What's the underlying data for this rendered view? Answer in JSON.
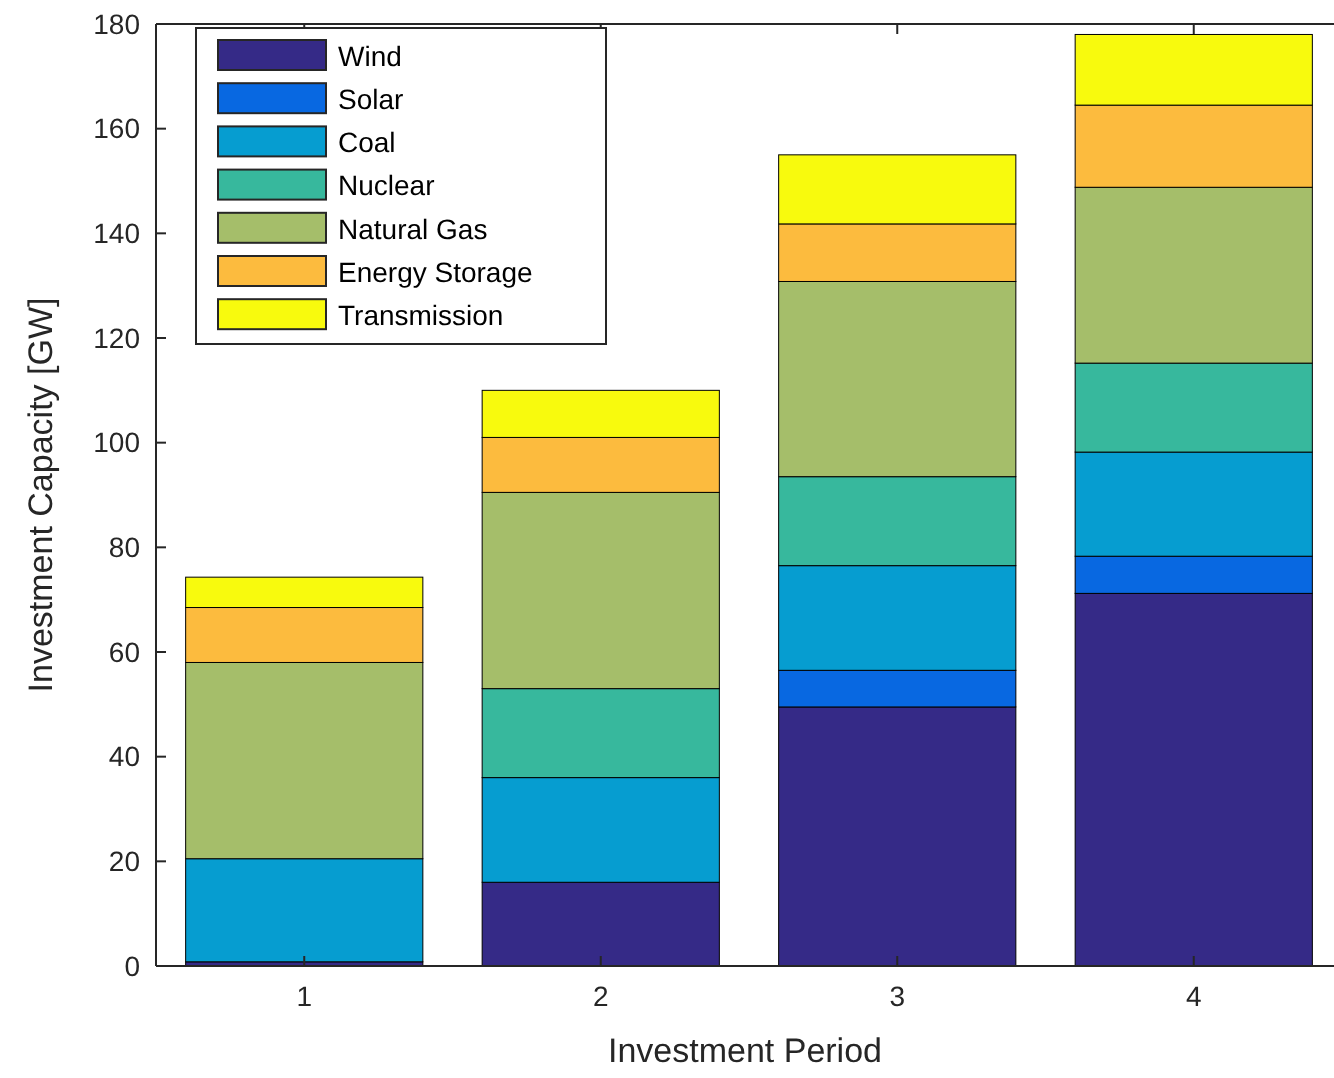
{
  "chart_data": {
    "type": "bar",
    "stacked": true,
    "xlabel": "Investment Period",
    "ylabel": "Investment Capacity [GW]",
    "categories": [
      "1",
      "2",
      "3",
      "4"
    ],
    "series": [
      {
        "name": "Wind",
        "color": "#352a87",
        "values": [
          0.8,
          16,
          49.5,
          71.2
        ]
      },
      {
        "name": "Solar",
        "color": "#0868e1",
        "values": [
          0,
          0,
          7,
          7.1
        ]
      },
      {
        "name": "Coal",
        "color": "#069dd0",
        "values": [
          19.7,
          20,
          20,
          19.9
        ]
      },
      {
        "name": "Nuclear",
        "color": "#37b89d",
        "values": [
          0,
          17,
          17,
          17
        ]
      },
      {
        "name": "Natural Gas",
        "color": "#a5be6a",
        "values": [
          37.5,
          37.5,
          37.3,
          33.6
        ]
      },
      {
        "name": "Energy Storage",
        "color": "#fcbb3e",
        "values": [
          10.5,
          10.5,
          11,
          15.7
        ]
      },
      {
        "name": "Transmission",
        "color": "#f8fa0d",
        "values": [
          5.8,
          9,
          13.2,
          13.5
        ]
      }
    ],
    "ylim": [
      0,
      180
    ],
    "yticks": [
      0,
      20,
      40,
      60,
      80,
      100,
      120,
      140,
      160,
      180
    ],
    "grid": false,
    "legend": "top left"
  }
}
